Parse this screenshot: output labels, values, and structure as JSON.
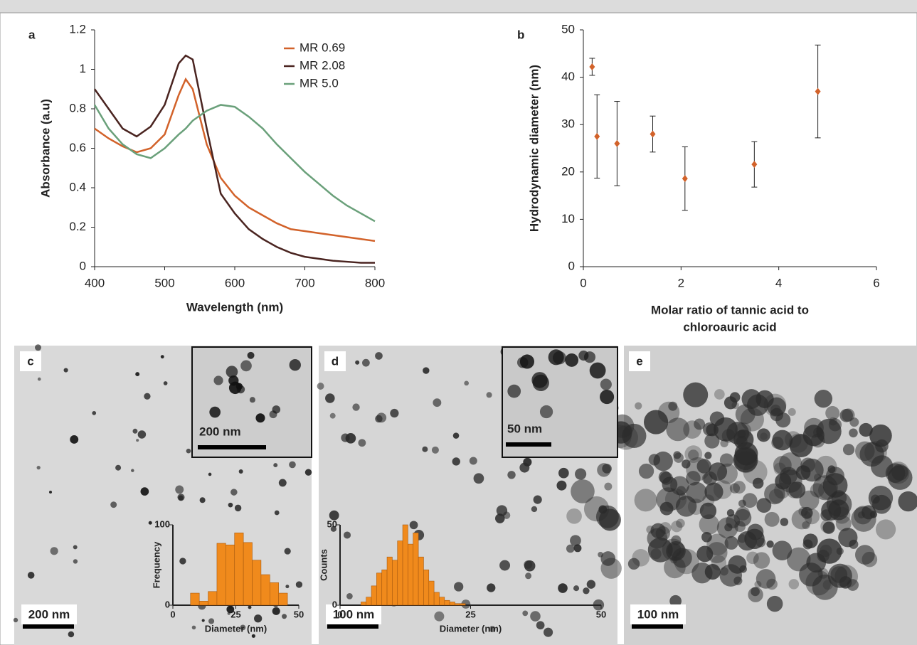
{
  "chart_data": [
    {
      "type": "line",
      "label": "a",
      "xlabel": "Wavelength (nm)",
      "ylabel": "Absorbance (a.u)",
      "x": [
        400,
        420,
        440,
        460,
        480,
        500,
        520,
        530,
        540,
        560,
        580,
        600,
        620,
        640,
        660,
        680,
        700,
        720,
        740,
        760,
        780,
        800
      ],
      "series": [
        {
          "name": "MR 0.69",
          "color": "#d2622a",
          "values": [
            0.7,
            0.65,
            0.61,
            0.58,
            0.6,
            0.67,
            0.87,
            0.95,
            0.9,
            0.62,
            0.45,
            0.36,
            0.3,
            0.26,
            0.22,
            0.19,
            0.18,
            0.17,
            0.16,
            0.15,
            0.14,
            0.13
          ]
        },
        {
          "name": "MR 2.08",
          "color": "#4a2420",
          "values": [
            0.9,
            0.8,
            0.7,
            0.66,
            0.71,
            0.82,
            1.03,
            1.07,
            1.05,
            0.7,
            0.37,
            0.27,
            0.19,
            0.14,
            0.1,
            0.07,
            0.05,
            0.04,
            0.03,
            0.025,
            0.02,
            0.02
          ]
        },
        {
          "name": "MR 5.0",
          "color": "#6aa07a",
          "values": [
            0.82,
            0.7,
            0.62,
            0.57,
            0.55,
            0.6,
            0.67,
            0.7,
            0.74,
            0.79,
            0.82,
            0.81,
            0.76,
            0.7,
            0.62,
            0.55,
            0.48,
            0.42,
            0.36,
            0.31,
            0.27,
            0.23
          ]
        }
      ],
      "xlim": [
        400,
        800
      ],
      "xticks": [
        400,
        500,
        600,
        700,
        800
      ],
      "ylim": [
        0,
        1.2
      ],
      "yticks": [
        0,
        0.2,
        0.4,
        0.6,
        0.8,
        1,
        1.2
      ],
      "legend": "upper right"
    },
    {
      "type": "scatter",
      "label": "b",
      "xlabel": [
        "Molar ratio of tannic acid to",
        "chloroauric acid"
      ],
      "ylabel": "Hydrodynamic diameter (nm)",
      "x": [
        0.18,
        0.28,
        0.69,
        1.42,
        2.08,
        3.5,
        4.8
      ],
      "values": [
        42.2,
        27.5,
        26,
        28,
        18.6,
        21.6,
        37
      ],
      "errors": [
        1.8,
        8.8,
        8.9,
        3.8,
        6.7,
        4.8,
        9.8
      ],
      "color": "#d2622a",
      "xlim": [
        0,
        6
      ],
      "xticks": [
        0,
        2,
        4,
        6
      ],
      "ylim": [
        0,
        50
      ],
      "yticks": [
        0,
        10,
        20,
        30,
        40,
        50
      ]
    },
    {
      "type": "histogram",
      "xlabel": "Diameter (nm)",
      "ylabel": "Frequency",
      "bins": [
        7,
        10.5,
        14,
        17.5,
        21,
        24.5,
        28,
        31.5,
        35,
        38.5,
        42,
        45.5
      ],
      "values": [
        15,
        5,
        17,
        77,
        75,
        90,
        78,
        56,
        38,
        28,
        15
      ],
      "color": "#f08a1c",
      "xlim": [
        0,
        50
      ],
      "xticks": [
        0,
        25,
        50
      ],
      "ylim": [
        0,
        100
      ],
      "yticks": [
        0,
        100
      ]
    },
    {
      "type": "histogram",
      "xlabel": "Diameter (nm)",
      "ylabel": "Counts",
      "bins": [
        4,
        5,
        6,
        7,
        8,
        9,
        10,
        11,
        12,
        13,
        14,
        15,
        16,
        17,
        18,
        19,
        20,
        21,
        22,
        23,
        24
      ],
      "values": [
        2,
        5,
        12,
        20,
        22,
        30,
        28,
        40,
        50,
        38,
        45,
        30,
        22,
        15,
        8,
        5,
        3,
        2,
        1,
        1
      ],
      "color": "#f08a1c",
      "xlim": [
        0,
        50
      ],
      "xticks": [
        0,
        25,
        50
      ],
      "ylim": [
        0,
        50
      ],
      "yticks": [
        0,
        50
      ]
    }
  ],
  "panels": [
    {
      "label": "c",
      "scale_bar": "200 nm",
      "inset_scale_bar": "200 nm"
    },
    {
      "label": "d",
      "scale_bar": "100 nm",
      "inset_scale_bar": "50 nm"
    },
    {
      "label": "e",
      "scale_bar": "100 nm"
    }
  ]
}
